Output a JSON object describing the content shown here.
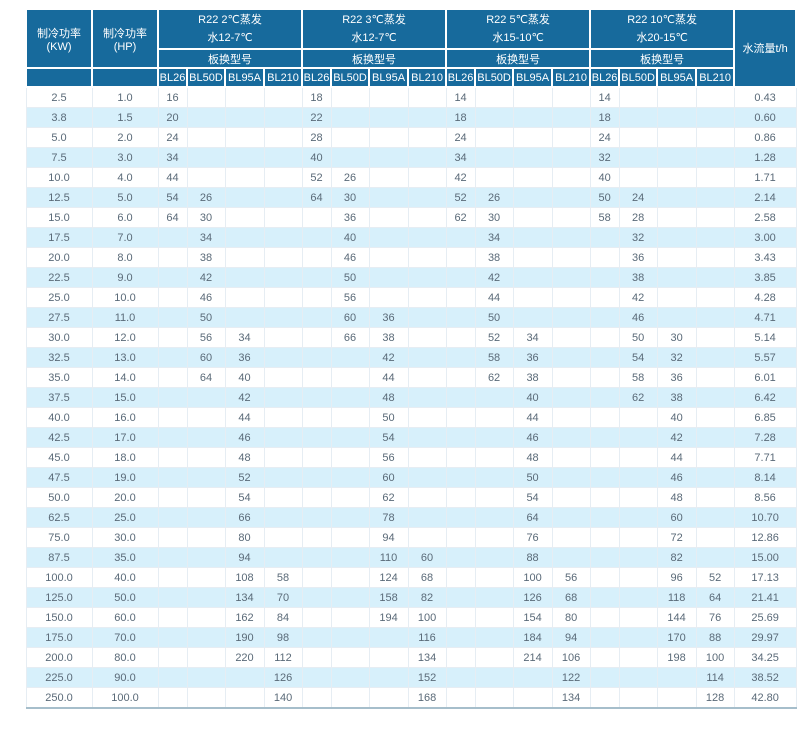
{
  "colors": {
    "header_bg": "#176a9c",
    "stripe": "#d7f0fb",
    "data_text": "#5a6a78",
    "grid_line": "#e6edf3",
    "bottom_line": "#a6becb"
  },
  "table": {
    "col_kw_header": "制冷功率(KW)",
    "col_hp_header": "制冷功率(HP)",
    "flow_header": "水流量t/h",
    "sub_header": "板换型号",
    "groups": [
      {
        "line1": "R22 2℃蒸发",
        "line2": "水12-7℃",
        "models": [
          "BL26",
          "BL50D",
          "BL95A",
          "BL210"
        ]
      },
      {
        "line1": "R22 3℃蒸发",
        "line2": "水12-7℃",
        "models": [
          "BL26",
          "BL50D",
          "BL95A",
          "BL210"
        ]
      },
      {
        "line1": "R22 5℃蒸发",
        "line2": "水15-10℃",
        "models": [
          "BL26",
          "BL50D",
          "BL95A",
          "BL210"
        ]
      },
      {
        "line1": "R22 10℃蒸发",
        "line2": "水20-15℃",
        "models": [
          "BL26",
          "BL50D",
          "BL95A",
          "BL210"
        ]
      }
    ],
    "rows": [
      [
        "2.5",
        "1.0",
        "16",
        "",
        "",
        "",
        "18",
        "",
        "",
        "",
        "14",
        "",
        "",
        "",
        "14",
        "",
        "",
        "",
        "0.43"
      ],
      [
        "3.8",
        "1.5",
        "20",
        "",
        "",
        "",
        "22",
        "",
        "",
        "",
        "18",
        "",
        "",
        "",
        "18",
        "",
        "",
        "",
        "0.60"
      ],
      [
        "5.0",
        "2.0",
        "24",
        "",
        "",
        "",
        "28",
        "",
        "",
        "",
        "24",
        "",
        "",
        "",
        "24",
        "",
        "",
        "",
        "0.86"
      ],
      [
        "7.5",
        "3.0",
        "34",
        "",
        "",
        "",
        "40",
        "",
        "",
        "",
        "34",
        "",
        "",
        "",
        "32",
        "",
        "",
        "",
        "1.28"
      ],
      [
        "10.0",
        "4.0",
        "44",
        "",
        "",
        "",
        "52",
        "26",
        "",
        "",
        "42",
        "",
        "",
        "",
        "40",
        "",
        "",
        "",
        "1.71"
      ],
      [
        "12.5",
        "5.0",
        "54",
        "26",
        "",
        "",
        "64",
        "30",
        "",
        "",
        "52",
        "26",
        "",
        "",
        "50",
        "24",
        "",
        "",
        "2.14"
      ],
      [
        "15.0",
        "6.0",
        "64",
        "30",
        "",
        "",
        "",
        "36",
        "",
        "",
        "62",
        "30",
        "",
        "",
        "58",
        "28",
        "",
        "",
        "2.58"
      ],
      [
        "17.5",
        "7.0",
        "",
        "34",
        "",
        "",
        "",
        "40",
        "",
        "",
        "",
        "34",
        "",
        "",
        "",
        "32",
        "",
        "",
        "3.00"
      ],
      [
        "20.0",
        "8.0",
        "",
        "38",
        "",
        "",
        "",
        "46",
        "",
        "",
        "",
        "38",
        "",
        "",
        "",
        "36",
        "",
        "",
        "3.43"
      ],
      [
        "22.5",
        "9.0",
        "",
        "42",
        "",
        "",
        "",
        "50",
        "",
        "",
        "",
        "42",
        "",
        "",
        "",
        "38",
        "",
        "",
        "3.85"
      ],
      [
        "25.0",
        "10.0",
        "",
        "46",
        "",
        "",
        "",
        "56",
        "",
        "",
        "",
        "44",
        "",
        "",
        "",
        "42",
        "",
        "",
        "4.28"
      ],
      [
        "27.5",
        "11.0",
        "",
        "50",
        "",
        "",
        "",
        "60",
        "36",
        "",
        "",
        "50",
        "",
        "",
        "",
        "46",
        "",
        "",
        "4.71"
      ],
      [
        "30.0",
        "12.0",
        "",
        "56",
        "34",
        "",
        "",
        "66",
        "38",
        "",
        "",
        "52",
        "34",
        "",
        "",
        "50",
        "30",
        "",
        "5.14"
      ],
      [
        "32.5",
        "13.0",
        "",
        "60",
        "36",
        "",
        "",
        "",
        "42",
        "",
        "",
        "58",
        "36",
        "",
        "",
        "54",
        "32",
        "",
        "5.57"
      ],
      [
        "35.0",
        "14.0",
        "",
        "64",
        "40",
        "",
        "",
        "",
        "44",
        "",
        "",
        "62",
        "38",
        "",
        "",
        "58",
        "36",
        "",
        "6.01"
      ],
      [
        "37.5",
        "15.0",
        "",
        "",
        "42",
        "",
        "",
        "",
        "48",
        "",
        "",
        "",
        "40",
        "",
        "",
        "62",
        "38",
        "",
        "6.42"
      ],
      [
        "40.0",
        "16.0",
        "",
        "",
        "44",
        "",
        "",
        "",
        "50",
        "",
        "",
        "",
        "44",
        "",
        "",
        "",
        "40",
        "",
        "6.85"
      ],
      [
        "42.5",
        "17.0",
        "",
        "",
        "46",
        "",
        "",
        "",
        "54",
        "",
        "",
        "",
        "46",
        "",
        "",
        "",
        "42",
        "",
        "7.28"
      ],
      [
        "45.0",
        "18.0",
        "",
        "",
        "48",
        "",
        "",
        "",
        "56",
        "",
        "",
        "",
        "48",
        "",
        "",
        "",
        "44",
        "",
        "7.71"
      ],
      [
        "47.5",
        "19.0",
        "",
        "",
        "52",
        "",
        "",
        "",
        "60",
        "",
        "",
        "",
        "50",
        "",
        "",
        "",
        "46",
        "",
        "8.14"
      ],
      [
        "50.0",
        "20.0",
        "",
        "",
        "54",
        "",
        "",
        "",
        "62",
        "",
        "",
        "",
        "54",
        "",
        "",
        "",
        "48",
        "",
        "8.56"
      ],
      [
        "62.5",
        "25.0",
        "",
        "",
        "66",
        "",
        "",
        "",
        "78",
        "",
        "",
        "",
        "64",
        "",
        "",
        "",
        "60",
        "",
        "10.70"
      ],
      [
        "75.0",
        "30.0",
        "",
        "",
        "80",
        "",
        "",
        "",
        "94",
        "",
        "",
        "",
        "76",
        "",
        "",
        "",
        "72",
        "",
        "12.86"
      ],
      [
        "87.5",
        "35.0",
        "",
        "",
        "94",
        "",
        "",
        "",
        "110",
        "60",
        "",
        "",
        "88",
        "",
        "",
        "",
        "82",
        "",
        "15.00"
      ],
      [
        "100.0",
        "40.0",
        "",
        "",
        "108",
        "58",
        "",
        "",
        "124",
        "68",
        "",
        "",
        "100",
        "56",
        "",
        "",
        "96",
        "52",
        "17.13"
      ],
      [
        "125.0",
        "50.0",
        "",
        "",
        "134",
        "70",
        "",
        "",
        "158",
        "82",
        "",
        "",
        "126",
        "68",
        "",
        "",
        "118",
        "64",
        "21.41"
      ],
      [
        "150.0",
        "60.0",
        "",
        "",
        "162",
        "84",
        "",
        "",
        "194",
        "100",
        "",
        "",
        "154",
        "80",
        "",
        "",
        "144",
        "76",
        "25.69"
      ],
      [
        "175.0",
        "70.0",
        "",
        "",
        "190",
        "98",
        "",
        "",
        "",
        "116",
        "",
        "",
        "184",
        "94",
        "",
        "",
        "170",
        "88",
        "29.97"
      ],
      [
        "200.0",
        "80.0",
        "",
        "",
        "220",
        "112",
        "",
        "",
        "",
        "134",
        "",
        "",
        "214",
        "106",
        "",
        "",
        "198",
        "100",
        "34.25"
      ],
      [
        "225.0",
        "90.0",
        "",
        "",
        "",
        "126",
        "",
        "",
        "",
        "152",
        "",
        "",
        "",
        "122",
        "",
        "",
        "",
        "114",
        "38.52"
      ],
      [
        "250.0",
        "100.0",
        "",
        "",
        "",
        "140",
        "",
        "",
        "",
        "168",
        "",
        "",
        "",
        "134",
        "",
        "",
        "",
        "128",
        "42.80"
      ]
    ]
  }
}
